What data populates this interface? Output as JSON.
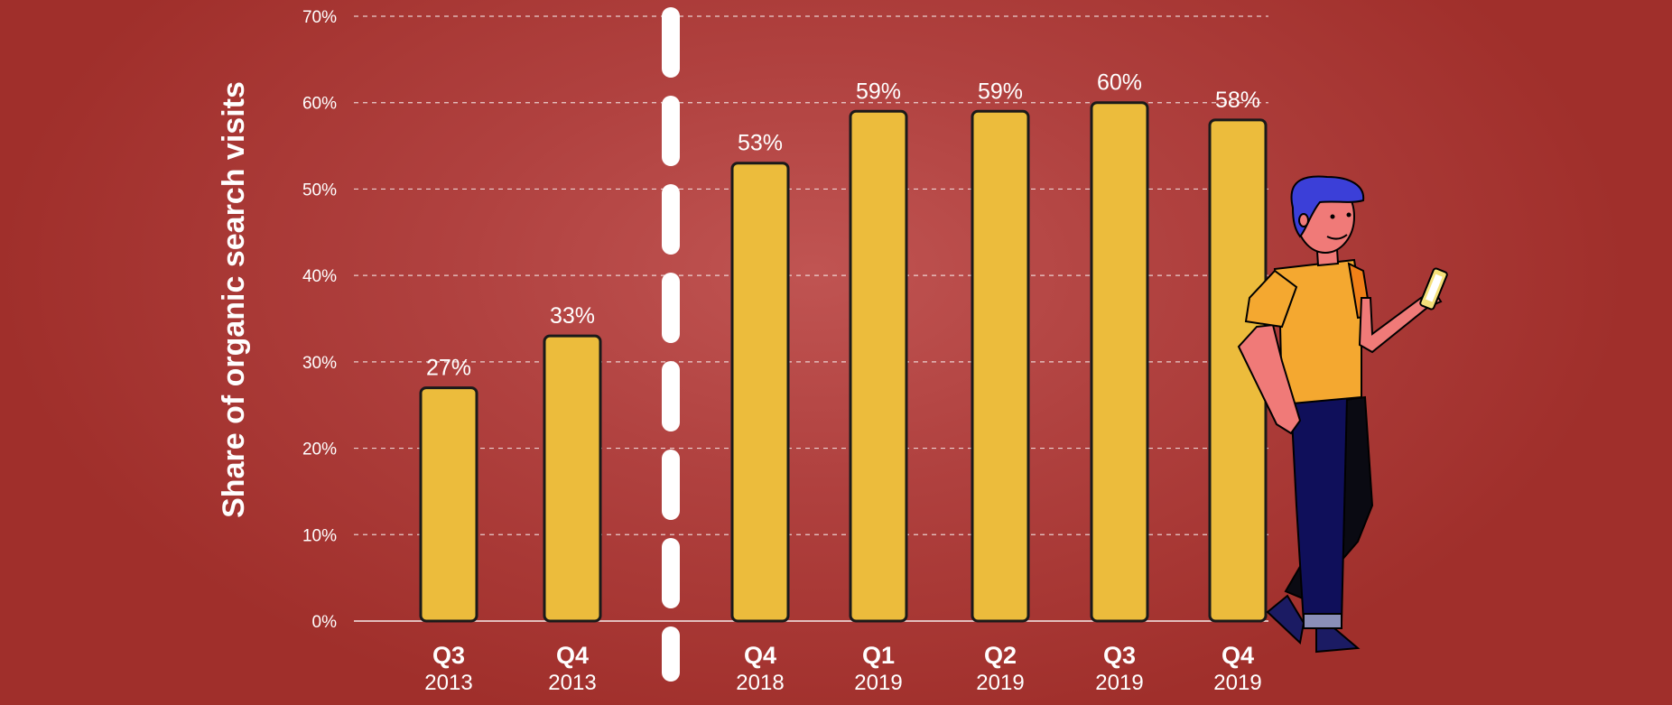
{
  "chart_data": {
    "type": "bar",
    "ylabel": "Share of organic search visits",
    "ylim": [
      0,
      70
    ],
    "yticks": [
      "0%",
      "10%",
      "20%",
      "30%",
      "40%",
      "50%",
      "60%",
      "70%"
    ],
    "grid": true,
    "categories": [
      {
        "quarter": "Q3",
        "year": "2013"
      },
      {
        "quarter": "Q4",
        "year": "2013"
      },
      {
        "quarter": "Q4",
        "year": "2018"
      },
      {
        "quarter": "Q1",
        "year": "2019"
      },
      {
        "quarter": "Q2",
        "year": "2019"
      },
      {
        "quarter": "Q3",
        "year": "2019"
      },
      {
        "quarter": "Q4",
        "year": "2019"
      }
    ],
    "values": [
      27,
      33,
      53,
      59,
      59,
      60,
      58
    ],
    "value_labels": [
      "27%",
      "33%",
      "53%",
      "59%",
      "59%",
      "60%",
      "58%"
    ],
    "series_break": "between Q4 2013 and Q4 2018"
  },
  "colors": {
    "bar": "#ecbc3c",
    "bar_outline": "#1a1a1a",
    "background": "#a83a36",
    "text": "#ffffff"
  },
  "illustration": "person-holding-phone"
}
